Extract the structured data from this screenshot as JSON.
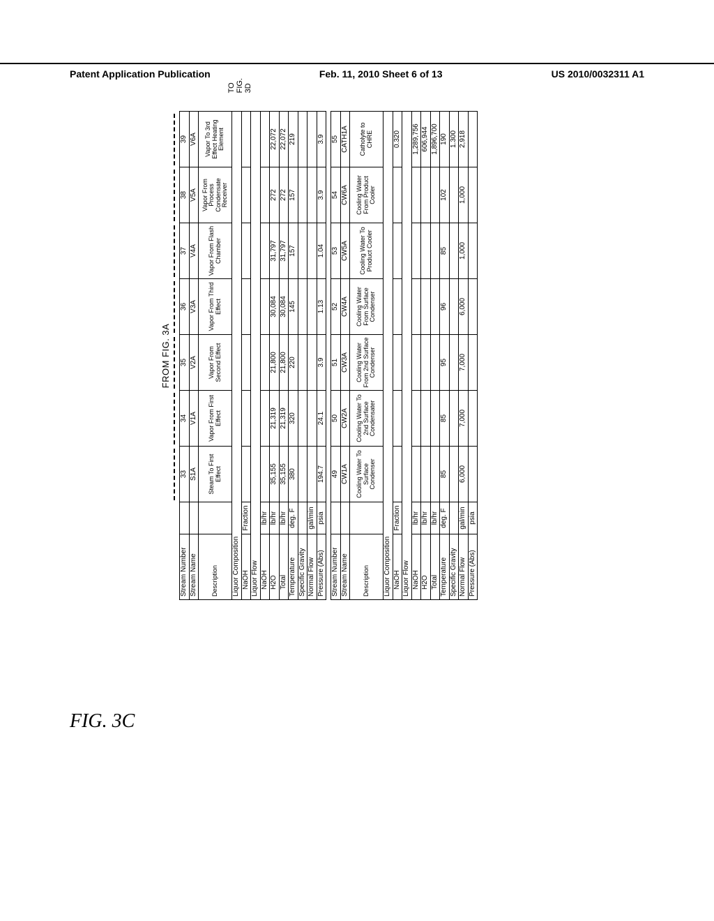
{
  "header": {
    "left": "Patent Application Publication",
    "center": "Feb. 11, 2010  Sheet 6 of 13",
    "right": "US 2010/0032311 A1"
  },
  "figure": {
    "from_label": "FROM FIG. 3A",
    "to_label_line1": "TO",
    "to_label_line2": "FIG.",
    "to_label_line3": "3D",
    "caption": "FIG. 3C"
  },
  "tableA": {
    "rows": {
      "stream_number": [
        "33",
        "34",
        "35",
        "36",
        "37",
        "38",
        "39"
      ],
      "stream_name": [
        "S1A",
        "V1A",
        "V2A",
        "V3A",
        "V4A",
        "V5A",
        "V6A"
      ],
      "description": [
        "Steam To First Effect",
        "Vapor From First Effect",
        "Vapor From Second Effect",
        "Vapor From Third Effect",
        "Vapor From Flash Chamber",
        "Vapor From Process Condensate Receiver",
        "Vapor To 3rd Effect Heating Element"
      ],
      "naoh_frac": [
        "",
        "",
        "",
        "",
        "",
        "",
        ""
      ],
      "naoh_lbhr": [
        "",
        "",
        "",
        "",
        "",
        "",
        ""
      ],
      "h2o_lbhr": [
        "35,155",
        "21,319",
        "21,800",
        "30,084",
        "31,797",
        "272",
        "22,072"
      ],
      "total_lbhr": [
        "35,155",
        "21,319",
        "21,800",
        "30,084",
        "31,797",
        "272",
        "22,072"
      ],
      "temperature": [
        "380",
        "320",
        "220",
        "145",
        "157",
        "157",
        "219"
      ],
      "spec_gravity": [
        "",
        "",
        "",
        "",
        "",
        "",
        ""
      ],
      "normal_flow": [
        "",
        "",
        "",
        "",
        "",
        "",
        ""
      ],
      "pressure": [
        "194.7",
        "24.1",
        "3.9",
        "1.13",
        "1.04",
        "3.9",
        "3.9"
      ]
    },
    "labels": {
      "stream_number": "Stream Number",
      "stream_name": "Stream Name",
      "description": "Description",
      "liq_comp": "Liquor Composition",
      "naoh": "NaOH",
      "liq_flow": "Liquor Flow",
      "h2o": "H2O",
      "total": "Total",
      "temperature": "Temperature",
      "spec_gravity": "Specific Gravity",
      "normal_flow": "Normal Flow",
      "pressure": "Pressure (Abs)"
    },
    "units": {
      "fraction": "Fraction",
      "lbhr": "lb/hr",
      "degF": "deg. F",
      "galmin": "gal/min",
      "psia": "psia"
    }
  },
  "tableB": {
    "rows": {
      "stream_number": [
        "49",
        "50",
        "51",
        "52",
        "53",
        "54",
        "55"
      ],
      "stream_name": [
        "CW1A",
        "CW2A",
        "CW3A",
        "CW4A",
        "CW5A",
        "CW6A",
        "CATH1A"
      ],
      "description": [
        "Cooling Water To Surface Condenser",
        "Cooling Water To 2nd Surface Condensater",
        "Cooling Water From 2nd Surface Condenser",
        "Cooling Water From Surface Condenser",
        "Cooling Water To Product Cooler",
        "Cooling Water From Product Cooler",
        "Catholyte to CHRE"
      ],
      "naoh_frac": [
        "",
        "",
        "",
        "",
        "",
        "",
        "0.320"
      ],
      "naoh_lbhr": [
        "",
        "",
        "",
        "",
        "",
        "",
        "1,289,756"
      ],
      "h2o_lbhr": [
        "",
        "",
        "",
        "",
        "",
        "",
        "606,944"
      ],
      "total_lbhr": [
        "",
        "",
        "",
        "",
        "",
        "",
        "1,896,700"
      ],
      "temperature": [
        "85",
        "85",
        "95",
        "96",
        "85",
        "102",
        "190"
      ],
      "spec_gravity": [
        "",
        "",
        "",
        "",
        "",
        "",
        "1.300"
      ],
      "normal_flow": [
        "6,000",
        "7,000",
        "7,000",
        "6,000",
        "1,000",
        "1,000",
        "2,918"
      ],
      "pressure": [
        "",
        "",
        "",
        "",
        "",
        "",
        ""
      ]
    }
  }
}
